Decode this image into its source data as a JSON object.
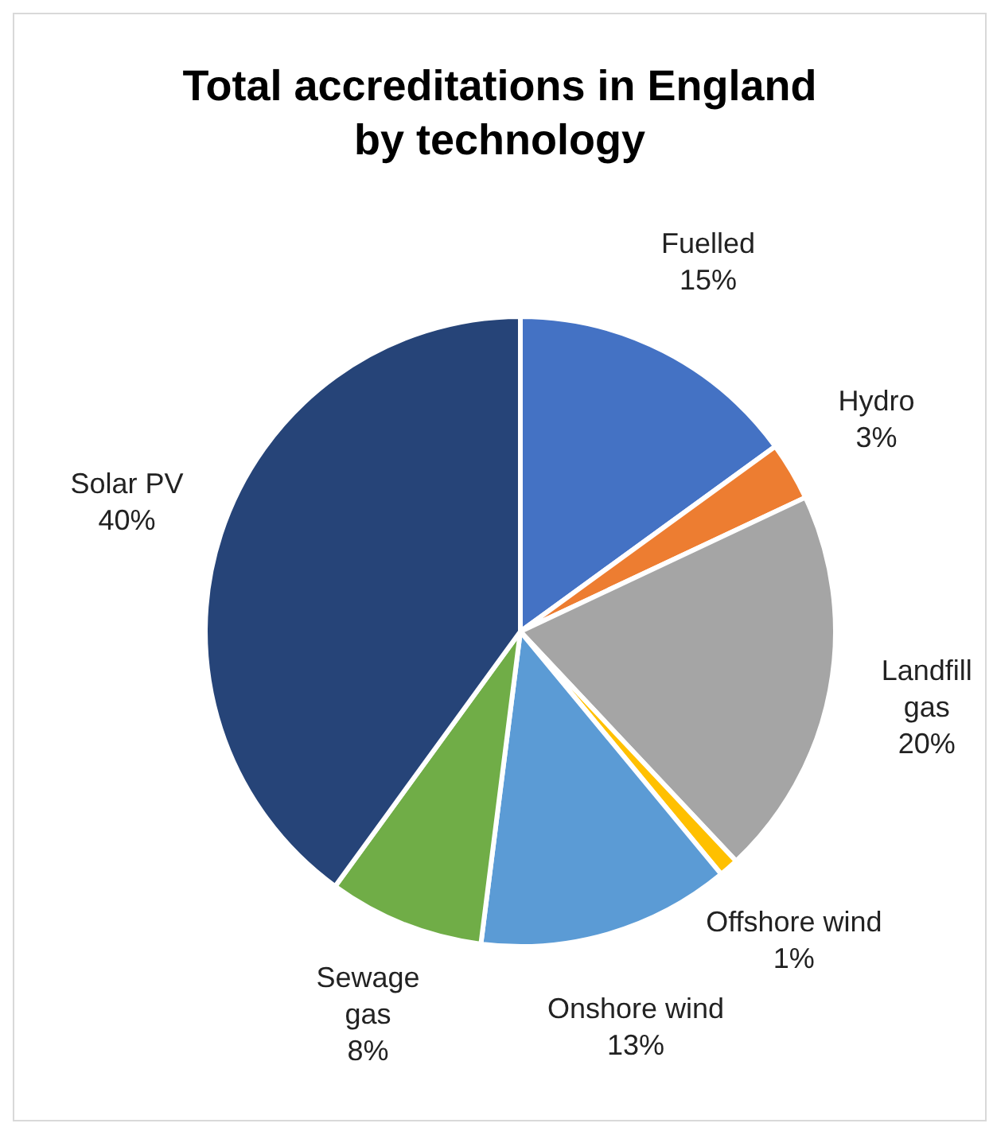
{
  "chart_data": {
    "type": "pie",
    "title": "Total accreditations in England by technology",
    "categories": [
      "Fuelled",
      "Hydro",
      "Landfill gas",
      "Offshore wind",
      "Onshore wind",
      "Sewage gas",
      "Solar PV"
    ],
    "values": [
      15,
      3,
      20,
      1,
      13,
      8,
      40
    ],
    "colors": [
      "#4472c4",
      "#ed7d31",
      "#a5a5a5",
      "#ffc000",
      "#5b9bd5",
      "#70ad47",
      "#264478"
    ],
    "value_labels": [
      "15%",
      "3%",
      "20%",
      "1%",
      "13%",
      "8%",
      "40%"
    ]
  }
}
